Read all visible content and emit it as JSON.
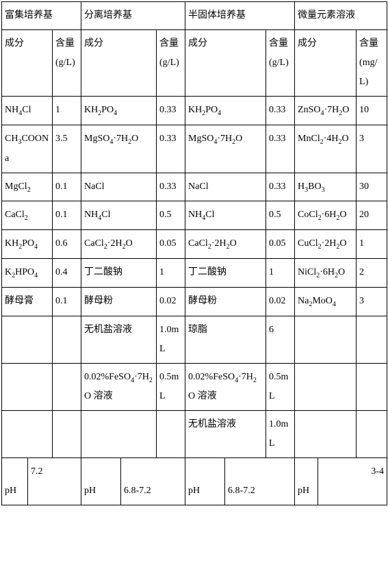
{
  "headers": {
    "sec1": "富集培养基",
    "sec2": "分离培养基",
    "sec3": "半固体培养基",
    "sec4": "微量元素溶液"
  },
  "subheaders": {
    "comp": "成分",
    "amt_gL": "含量(g/L)",
    "amt_mgL": "含量(mg/L)"
  },
  "rows": [
    {
      "c1": "NH₄Cl",
      "a1": "1",
      "c2": "KH₂PO₄",
      "a2": "0.33",
      "c3": "KH₂PO₄",
      "a3": "0.33",
      "c4": "ZnSO₄·7H₂O",
      "a4": "10"
    },
    {
      "c1": "CH₃COONa",
      "a1": "3.5",
      "c2": "MgSO₄·7H₂O",
      "a2": "0.33",
      "c3": "MgSO₄·7H₂O",
      "a3": "0.33",
      "c4": "MnCl₂·4H₂O",
      "a4": "3"
    },
    {
      "c1": "MgCl₂",
      "a1": "0.1",
      "c2": "NaCl",
      "a2": "0.33",
      "c3": "NaCl",
      "a3": "0.33",
      "c4": "H₃BO₃",
      "a4": "30"
    },
    {
      "c1": "CaCl₂",
      "a1": "0.1",
      "c2": "NH₄Cl",
      "a2": "0.5",
      "c3": "NH₄Cl",
      "a3": "0.5",
      "c4": "CoCl₂·6H₂O",
      "a4": "20"
    },
    {
      "c1": "KH₂PO₄",
      "a1": "0.6",
      "c2": "CaCl₂·2H₂O",
      "a2": "0.05",
      "c3": "CaCl₂·2H₂O",
      "a3": "0.05",
      "c4": "CuCl₂·2H₂O",
      "a4": "1"
    },
    {
      "c1": "K₂HPO₄",
      "a1": "0.4",
      "c2": "丁二酸钠",
      "a2": "1",
      "c3": "丁二酸钠",
      "a3": "1",
      "c4": "NiCl₂·6H₂O",
      "a4": "2"
    },
    {
      "c1": "酵母膏",
      "a1": "0.1",
      "c2": "酵母粉",
      "a2": "0.02",
      "c3": "酵母粉",
      "a3": "0.02",
      "c4": "Na₂MoO₄",
      "a4": "3"
    },
    {
      "c1": "",
      "a1": "",
      "c2": "无机盐溶液",
      "a2": "1.0mL",
      "c3": "琼脂",
      "a3": "6",
      "c4": "",
      "a4": ""
    },
    {
      "c1": "",
      "a1": "",
      "c2": "0.02%FeSO₄·7H₂O 溶液",
      "a2": "0.5mL",
      "c3": "0.02%FeSO₄·7H₂O 溶液",
      "a3": "0.5mL",
      "c4": "",
      "a4": ""
    },
    {
      "c1": "",
      "a1": "",
      "c2": "",
      "a2": "",
      "c3": "无机盐溶液",
      "a3": "1.0mL",
      "c4": "",
      "a4": ""
    }
  ],
  "phrow": {
    "label": "pH",
    "v1": "7.2",
    "v2": "6.8-7.2",
    "v3": "6.8-7.2",
    "v4": "3-4"
  },
  "colwidths": {
    "c1a": 38,
    "c1b": 36,
    "c1c": 42,
    "c2a": 58,
    "c2b": 52,
    "c2c": 42,
    "c3a": 58,
    "c3b": 60,
    "c3c": 42,
    "c4a": 34,
    "c4b": 56,
    "c4c": 45
  }
}
